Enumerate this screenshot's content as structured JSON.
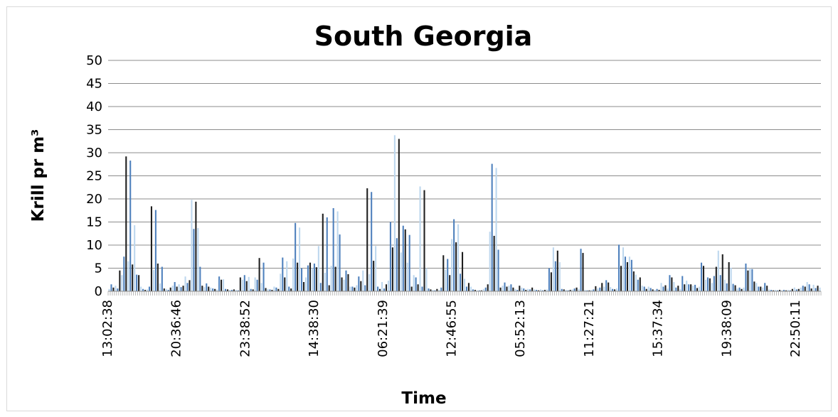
{
  "chart_data": {
    "type": "bar",
    "title": "South Georgia",
    "xlabel": "Time",
    "ylabel": "Krill pr m³",
    "ylim": [
      0,
      50
    ],
    "yticks": [
      "0",
      "5",
      "10",
      "15",
      "20",
      "25",
      "30",
      "35",
      "40",
      "45",
      "50"
    ],
    "grid": true,
    "x_tick_labels": [
      "13:02:38",
      "20:36:46",
      "23:38:52",
      "14:38:30",
      "06:21:39",
      "12:46:55",
      "05:52:13",
      "11:27:21",
      "15:37:34",
      "19:38:09",
      "22:50:11"
    ],
    "colors": {
      "light": "#bdd7ee",
      "medium": "#4f81bd",
      "dark": "#1f1f1f",
      "grid": "#8c8c8c"
    },
    "series": [
      {
        "values": [
          0.5,
          1.5,
          0.8,
          1.2,
          0.6,
          4.5,
          3.5,
          7.5,
          29.2,
          6.5,
          28.3,
          5.8,
          14.3,
          3.6,
          3.5,
          1,
          0.5,
          0.3,
          0.4,
          1,
          18.4,
          4.6,
          17.6,
          6,
          1.7,
          5.3,
          0.6,
          0.5,
          0.3,
          0.8,
          1.2,
          2,
          1,
          1.5,
          0.9,
          1.2,
          3.2,
          1.8,
          2.4,
          19.8,
          13.5,
          19.4,
          13.7,
          5.3,
          1.2,
          0.9,
          1.7,
          1,
          0.8,
          0.6,
          0.5,
          0.4,
          3.2,
          2.5,
          2.6,
          0.5,
          0.4,
          0.3,
          0.3,
          0.4,
          0.3,
          0.2,
          3,
          2.5,
          3.5,
          2.2,
          3.1,
          0.5,
          0.4,
          3,
          2.5,
          7.2,
          1.8,
          6.2,
          0.7,
          0.5,
          0.4,
          0.3,
          1,
          0.8,
          0.5,
          3.8,
          7.3,
          3,
          6.5,
          1,
          0.6,
          7.1,
          14.8,
          6.2,
          13.8,
          5,
          2,
          3,
          5.6,
          6.2,
          5,
          6,
          5.2,
          9.8,
          1.8,
          16.8,
          4,
          16,
          1.3,
          5.5,
          18,
          5.3,
          17.3,
          12.3,
          3,
          2.5,
          4.5,
          3.7,
          1,
          1,
          0.8,
          1.3,
          3.2,
          2.2,
          4.5,
          1.3,
          22.3,
          3.7,
          21.5,
          6.6,
          9.8,
          1,
          0.5,
          2,
          0.6,
          1.5,
          2.3,
          15,
          9.5,
          33.8,
          11.5,
          33,
          8.4,
          14.2,
          13.4,
          6.2,
          12.2,
          1,
          3.5,
          3,
          1.5,
          22.7,
          1,
          21.9,
          5,
          0.6,
          0.4,
          0.3,
          0.2,
          0.5,
          0.3,
          0.8,
          7.8,
          4.7,
          7,
          3.5,
          11.3,
          15.6,
          10.6,
          14.5,
          3.8,
          8.5,
          2.7,
          1,
          1.8,
          1,
          0.4,
          0.3,
          0.2,
          0.2,
          0.2,
          0.5,
          0.8,
          1.5,
          12.9,
          27.6,
          12,
          26.7,
          9,
          0.8,
          1.2,
          1.9,
          1,
          1.2,
          1.5,
          0.8,
          0.5,
          0.3,
          1.2,
          0.8,
          0.6,
          0.3,
          0.5,
          0.4,
          0.8,
          0.4,
          0.3,
          0.2,
          0.4,
          0.2,
          0.3,
          0.4,
          5,
          4.1,
          9.5,
          6.5,
          8.8,
          6.3,
          0.5,
          0.4,
          0.3,
          0.2,
          0.3,
          0.4,
          0.6,
          0.8,
          0.5,
          9.2,
          8.3,
          0.3,
          0.2,
          0.2,
          0.3,
          0.4,
          1.1,
          0.6,
          0.8,
          1.8,
          1,
          2.4,
          1.9,
          0.9,
          0.5,
          0.4,
          0.6,
          10.1,
          5.5,
          9.5,
          7.5,
          6.3,
          7.5,
          6.8,
          4.3,
          3.6,
          2.5,
          3,
          1.2,
          1,
          0.5,
          1,
          0.7,
          0.4,
          0.3,
          0.5,
          0.3,
          1.8,
          1,
          1.3,
          0.6,
          3.5,
          3,
          2,
          0.8,
          1.2,
          0.5,
          3.3,
          1.5,
          2.3,
          1.5,
          1.5,
          1.2,
          1.4,
          0.7,
          1,
          6.2,
          5.5,
          2.5,
          3,
          2.8,
          1.8,
          3.3,
          5.3,
          8.8,
          3.5,
          8,
          2.5,
          1.7,
          6.3,
          5.1,
          1.6,
          1.3,
          0.6,
          0.8,
          0.5,
          0.8,
          6,
          4.5,
          5,
          4.8,
          2.1,
          1.8,
          1,
          1,
          0.8,
          1.8,
          1.2,
          0.4,
          0.3,
          0.2,
          0.3,
          0.2,
          0.3,
          0.2,
          0.3,
          0.2,
          0.3,
          0.2,
          0.5,
          0.8,
          0.4,
          0.5,
          0.8,
          1.2,
          1,
          2,
          1.5,
          0.6,
          1.4,
          0.7,
          1.2,
          0.8
        ]
      }
    ]
  }
}
